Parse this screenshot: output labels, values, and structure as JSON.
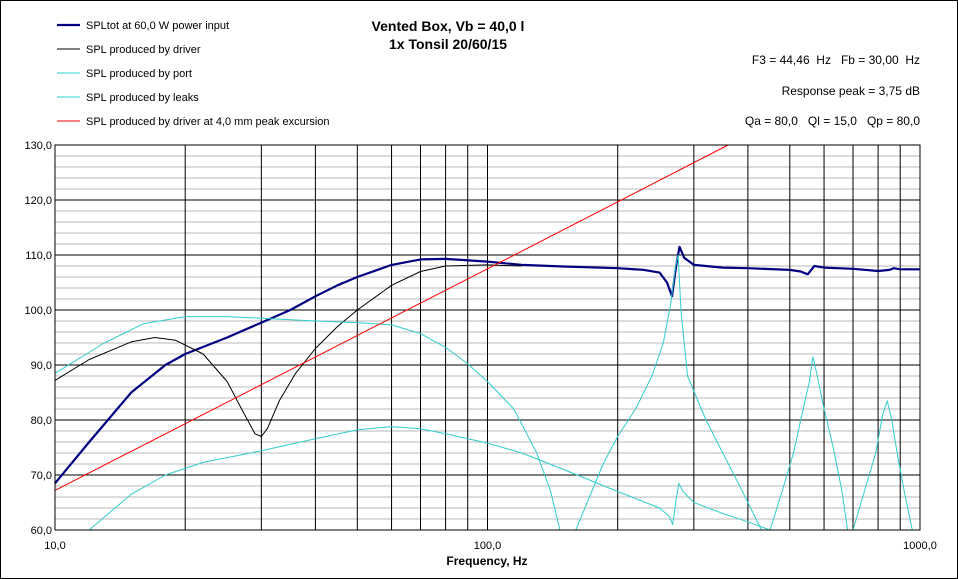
{
  "chart_data": {
    "type": "line",
    "title": [
      "Vented Box, Vb = 40,0 l",
      "1x Tonsil 20/60/15"
    ],
    "info": [
      "F3 = 44,46  Hz   Fb = 30,00  Hz",
      "Response peak = 3,75 dB",
      "Qa = 80,0   Ql = 15,0   Qp = 80,0"
    ],
    "xlabel": "Frequency, Hz",
    "ylabel": "",
    "x_scale": "log",
    "xlim": [
      10,
      1000
    ],
    "ylim": [
      60,
      130
    ],
    "x_ticks": [
      {
        "value": 10,
        "label": "10,0"
      },
      {
        "value": 100,
        "label": "100,0"
      },
      {
        "value": 1000,
        "label": "1000,0"
      }
    ],
    "y_ticks": [
      {
        "value": 60,
        "label": "60,0"
      },
      {
        "value": 70,
        "label": "70,0"
      },
      {
        "value": 80,
        "label": "80,0"
      },
      {
        "value": 90,
        "label": "90,0"
      },
      {
        "value": 100,
        "label": "100,0"
      },
      {
        "value": 110,
        "label": "110,0"
      },
      {
        "value": 120,
        "label": "120,0"
      },
      {
        "value": 130,
        "label": "130,0"
      }
    ],
    "grid": true,
    "legend_position": "top-left",
    "series": [
      {
        "name": "SPLtot at 60,0 W power input",
        "color": "#000080",
        "width": 2.2,
        "points": [
          [
            10,
            68.5
          ],
          [
            12,
            76
          ],
          [
            15,
            85
          ],
          [
            18,
            90
          ],
          [
            20,
            92
          ],
          [
            25,
            95
          ],
          [
            30,
            97.7
          ],
          [
            35,
            100
          ],
          [
            40,
            102.5
          ],
          [
            45,
            104.5
          ],
          [
            50,
            106
          ],
          [
            60,
            108.2
          ],
          [
            70,
            109.2
          ],
          [
            80,
            109.3
          ],
          [
            100,
            108.8
          ],
          [
            120,
            108.2
          ],
          [
            150,
            107.9
          ],
          [
            200,
            107.6
          ],
          [
            230,
            107.3
          ],
          [
            250,
            106.8
          ],
          [
            260,
            105
          ],
          [
            267,
            102.5
          ],
          [
            273,
            108
          ],
          [
            278,
            111.5
          ],
          [
            285,
            109.5
          ],
          [
            300,
            108.2
          ],
          [
            350,
            107.7
          ],
          [
            400,
            107.6
          ],
          [
            500,
            107.3
          ],
          [
            530,
            107
          ],
          [
            550,
            106.5
          ],
          [
            570,
            108
          ],
          [
            600,
            107.7
          ],
          [
            700,
            107.5
          ],
          [
            800,
            107.1
          ],
          [
            850,
            107.3
          ],
          [
            870,
            107.6
          ],
          [
            900,
            107.4
          ],
          [
            1000,
            107.4
          ]
        ]
      },
      {
        "name": "SPL produced by driver",
        "color": "#000000",
        "width": 1,
        "points": [
          [
            10,
            87.2
          ],
          [
            12,
            91
          ],
          [
            15,
            94.2
          ],
          [
            17,
            95
          ],
          [
            19,
            94.5
          ],
          [
            22,
            92
          ],
          [
            25,
            87
          ],
          [
            27,
            82
          ],
          [
            29,
            77.5
          ],
          [
            30,
            77
          ],
          [
            31,
            78.5
          ],
          [
            33,
            83.5
          ],
          [
            36,
            88.5
          ],
          [
            40,
            93
          ],
          [
            45,
            97
          ],
          [
            50,
            100
          ],
          [
            60,
            104.5
          ],
          [
            70,
            107
          ],
          [
            80,
            108
          ],
          [
            100,
            108.2
          ],
          [
            120,
            108
          ]
        ]
      },
      {
        "name": "SPL produced by port",
        "color": "#33CCCC",
        "width": 1,
        "points": [
          [
            10,
            88.5
          ],
          [
            13,
            94
          ],
          [
            16,
            97.5
          ],
          [
            20,
            98.8
          ],
          [
            25,
            98.8
          ],
          [
            30,
            98.5
          ],
          [
            40,
            98
          ],
          [
            50,
            97.7
          ],
          [
            60,
            97.3
          ],
          [
            70,
            95.7
          ],
          [
            80,
            93.2
          ],
          [
            90,
            90.2
          ],
          [
            100,
            87
          ],
          [
            115,
            82
          ],
          [
            130,
            74
          ],
          [
            140,
            67
          ],
          [
            147,
            60
          ]
        ]
      },
      {
        "name": "SPL produced by leaks",
        "color": "#33CCCC",
        "width": 1,
        "points": [
          [
            12,
            60
          ],
          [
            15,
            66.5
          ],
          [
            18,
            70
          ],
          [
            22,
            72.3
          ],
          [
            30,
            74.4
          ],
          [
            40,
            76.6
          ],
          [
            50,
            78.2
          ],
          [
            60,
            78.8
          ],
          [
            70,
            78.4
          ],
          [
            80,
            77.5
          ],
          [
            100,
            75.8
          ],
          [
            120,
            74
          ],
          [
            150,
            71
          ],
          [
            200,
            67
          ],
          [
            250,
            64
          ],
          [
            263,
            62.5
          ],
          [
            268,
            61
          ],
          [
            273,
            65.5
          ],
          [
            277,
            68.5
          ],
          [
            283,
            67
          ],
          [
            300,
            65
          ],
          [
            350,
            63
          ],
          [
            400,
            61.5
          ],
          [
            450,
            60
          ]
        ]
      },
      {
        "name": "SPL produced by leaks",
        "color": "#33CCCC",
        "width": 1,
        "points": [
          [
            160,
            60
          ],
          [
            170,
            65
          ],
          [
            185,
            72
          ],
          [
            200,
            77
          ],
          [
            220,
            82
          ],
          [
            240,
            88
          ],
          [
            255,
            94
          ],
          [
            265,
            101
          ],
          [
            272,
            108
          ],
          [
            276,
            110
          ],
          [
            280,
            100
          ],
          [
            290,
            88
          ],
          [
            320,
            80
          ],
          [
            350,
            74
          ],
          [
            380,
            68.5
          ],
          [
            400,
            65
          ],
          [
            430,
            60
          ]
        ]
      },
      {
        "name": "SPL produced by leaks",
        "color": "#33CCCC",
        "width": 1,
        "points": [
          [
            450,
            60
          ],
          [
            480,
            67
          ],
          [
            510,
            74
          ],
          [
            530,
            80
          ],
          [
            555,
            87
          ],
          [
            565,
            91.5
          ],
          [
            575,
            89
          ],
          [
            600,
            82
          ],
          [
            630,
            75
          ],
          [
            660,
            67
          ],
          [
            680,
            60
          ]
        ]
      },
      {
        "name": "SPL produced by leaks",
        "color": "#33CCCC",
        "width": 1,
        "points": [
          [
            700,
            60
          ],
          [
            750,
            68
          ],
          [
            790,
            74
          ],
          [
            820,
            81
          ],
          [
            840,
            83.5
          ],
          [
            860,
            80
          ],
          [
            890,
            73
          ],
          [
            920,
            67
          ],
          [
            960,
            60
          ]
        ]
      },
      {
        "name": "SPL produced by driver at 4,0 mm peak excursion",
        "color": "#FF0000",
        "width": 1,
        "points": [
          [
            10,
            67.2
          ],
          [
            100,
            107.5
          ],
          [
            360,
            130
          ]
        ]
      }
    ],
    "legend": [
      {
        "label": "SPLtot at 60,0 W power input",
        "color": "#000080",
        "width": 2.2
      },
      {
        "label": "SPL produced by driver",
        "color": "#000000",
        "width": 1
      },
      {
        "label": "SPL produced by port",
        "color": "#33CCCC",
        "width": 1
      },
      {
        "label": "SPL produced by leaks",
        "color": "#33CCCC",
        "width": 1
      },
      {
        "label": "SPL produced by driver at 4,0 mm peak excursion",
        "color": "#FF0000",
        "width": 1
      }
    ]
  }
}
